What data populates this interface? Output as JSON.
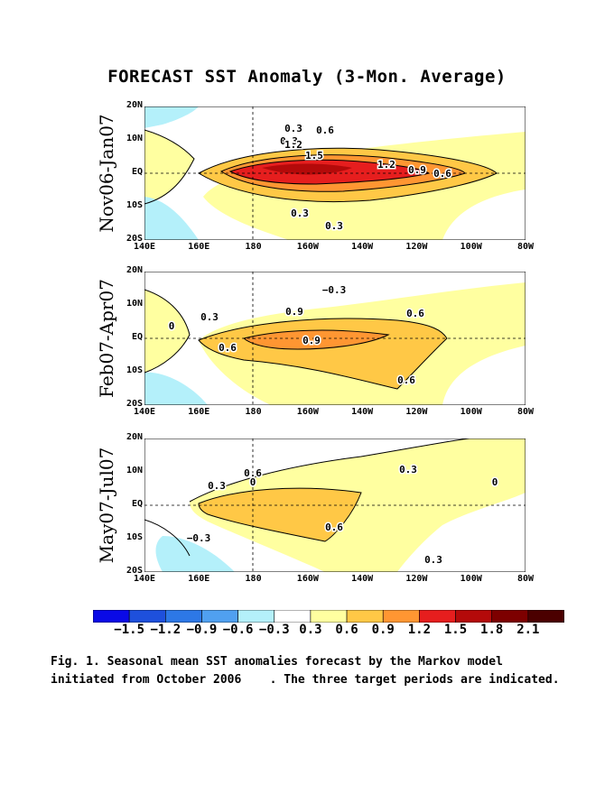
{
  "figure": {
    "title": "FORECAST SST Anomaly (3-Mon. Average)",
    "caption_line1": "Fig. 1. Seasonal mean SST anomalies forecast by the Markov model",
    "caption_line2": "initiated from October 2006    . The three target periods are indicated."
  },
  "colorbar": {
    "colors": [
      "#0a0ae6",
      "#1e50dc",
      "#2d78e6",
      "#50a0f0",
      "#b4f0fa",
      "#ffffff",
      "#ffffa0",
      "#ffc846",
      "#ff9632",
      "#e61e1e",
      "#b40a0a",
      "#7d0000",
      "#4b0000"
    ],
    "labels": [
      "−1.5",
      "−1.2",
      "−0.9",
      "−0.6",
      "−0.3",
      "0.3",
      "0.6",
      "0.9",
      "1.2",
      "1.5",
      "1.8",
      "2.1"
    ]
  },
  "chart_data": [
    {
      "type": "heatmap",
      "panel_label": "Nov06-Jan07",
      "x_ticks": [
        "140E",
        "160E",
        "180",
        "160W",
        "140W",
        "120W",
        "100W",
        "80W"
      ],
      "y_ticks": [
        "20N",
        "10N",
        "EQ",
        "10S",
        "20S"
      ],
      "contour_labels": [
        "0.3",
        "0.3",
        "0.6",
        "1.2",
        "1.5",
        "1.2",
        "0.9",
        "0.6",
        "0.3",
        "0.3"
      ],
      "peak_anomaly": 1.5
    },
    {
      "type": "heatmap",
      "panel_label": "Feb07-Apr07",
      "x_ticks": [
        "140E",
        "160E",
        "180",
        "160W",
        "140W",
        "120W",
        "100W",
        "80W"
      ],
      "y_ticks": [
        "20N",
        "10N",
        "EQ",
        "10S",
        "20S"
      ],
      "contour_labels": [
        "0.3",
        "0.6",
        "0.9",
        "0.6",
        "0.9",
        "0.6",
        "−0.3",
        "0"
      ],
      "peak_anomaly": 0.9
    },
    {
      "type": "heatmap",
      "panel_label": "May07-Jul07",
      "x_ticks": [
        "140E",
        "160E",
        "180",
        "160W",
        "140W",
        "120W",
        "100W",
        "80W"
      ],
      "y_ticks": [
        "20N",
        "10N",
        "EQ",
        "10S",
        "20S"
      ],
      "contour_labels": [
        "0.3",
        "0.6",
        "0.3",
        "0.6",
        "−0.3",
        "0",
        "0",
        "0.3"
      ],
      "peak_anomaly": 0.6
    }
  ]
}
